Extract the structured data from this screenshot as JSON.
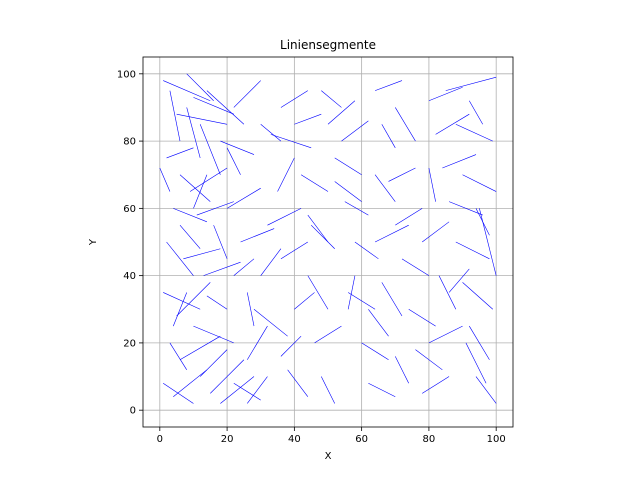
{
  "chart_data": {
    "type": "line-segments",
    "title": "Liniensegmente",
    "xlabel": "X",
    "ylabel": "Y",
    "xlim": [
      -5,
      105
    ],
    "ylim": [
      -5,
      105
    ],
    "xticks": [
      0,
      20,
      40,
      60,
      80,
      100
    ],
    "yticks": [
      0,
      20,
      40,
      60,
      80,
      100
    ],
    "xtick_labels": [
      "0",
      "20",
      "40",
      "60",
      "80",
      "100"
    ],
    "ytick_labels": [
      "0",
      "20",
      "40",
      "60",
      "80",
      "100"
    ],
    "grid": true,
    "segment_color": "#0000ff",
    "segments": [
      [
        [
          1,
          98
        ],
        [
          15,
          92
        ]
      ],
      [
        [
          3,
          95
        ],
        [
          6,
          80
        ]
      ],
      [
        [
          5,
          88
        ],
        [
          20,
          85
        ]
      ],
      [
        [
          8,
          90
        ],
        [
          12,
          75
        ]
      ],
      [
        [
          10,
          93
        ],
        [
          22,
          88
        ]
      ],
      [
        [
          12,
          85
        ],
        [
          18,
          70
        ]
      ],
      [
        [
          14,
          95
        ],
        [
          25,
          85
        ]
      ],
      [
        [
          2,
          75
        ],
        [
          10,
          78
        ]
      ],
      [
        [
          6,
          70
        ],
        [
          15,
          62
        ]
      ],
      [
        [
          9,
          65
        ],
        [
          20,
          72
        ]
      ],
      [
        [
          4,
          60
        ],
        [
          14,
          56
        ]
      ],
      [
        [
          11,
          58
        ],
        [
          22,
          62
        ]
      ],
      [
        [
          16,
          55
        ],
        [
          20,
          45
        ]
      ],
      [
        [
          2,
          50
        ],
        [
          10,
          40
        ]
      ],
      [
        [
          7,
          45
        ],
        [
          18,
          48
        ]
      ],
      [
        [
          13,
          40
        ],
        [
          24,
          44
        ]
      ],
      [
        [
          1,
          35
        ],
        [
          12,
          30
        ]
      ],
      [
        [
          5,
          28
        ],
        [
          15,
          38
        ]
      ],
      [
        [
          10,
          25
        ],
        [
          22,
          20
        ]
      ],
      [
        [
          3,
          20
        ],
        [
          8,
          12
        ]
      ],
      [
        [
          6,
          15
        ],
        [
          18,
          22
        ]
      ],
      [
        [
          12,
          10
        ],
        [
          20,
          18
        ]
      ],
      [
        [
          1,
          8
        ],
        [
          10,
          2
        ]
      ],
      [
        [
          4,
          4
        ],
        [
          14,
          12
        ]
      ],
      [
        [
          15,
          5
        ],
        [
          25,
          15
        ]
      ],
      [
        [
          18,
          2
        ],
        [
          28,
          10
        ]
      ],
      [
        [
          22,
          8
        ],
        [
          30,
          3
        ]
      ],
      [
        [
          26,
          15
        ],
        [
          32,
          25
        ]
      ],
      [
        [
          28,
          30
        ],
        [
          38,
          22
        ]
      ],
      [
        [
          30,
          40
        ],
        [
          36,
          48
        ]
      ],
      [
        [
          32,
          55
        ],
        [
          42,
          60
        ]
      ],
      [
        [
          35,
          65
        ],
        [
          40,
          75
        ]
      ],
      [
        [
          33,
          82
        ],
        [
          45,
          78
        ]
      ],
      [
        [
          36,
          90
        ],
        [
          44,
          95
        ]
      ],
      [
        [
          40,
          85
        ],
        [
          48,
          88
        ]
      ],
      [
        [
          42,
          70
        ],
        [
          50,
          65
        ]
      ],
      [
        [
          45,
          55
        ],
        [
          52,
          48
        ]
      ],
      [
        [
          44,
          40
        ],
        [
          50,
          30
        ]
      ],
      [
        [
          46,
          20
        ],
        [
          54,
          25
        ]
      ],
      [
        [
          48,
          10
        ],
        [
          52,
          2
        ]
      ],
      [
        [
          50,
          85
        ],
        [
          58,
          92
        ]
      ],
      [
        [
          52,
          75
        ],
        [
          60,
          70
        ]
      ],
      [
        [
          55,
          62
        ],
        [
          62,
          58
        ]
      ],
      [
        [
          58,
          50
        ],
        [
          65,
          45
        ]
      ],
      [
        [
          56,
          35
        ],
        [
          64,
          30
        ]
      ],
      [
        [
          60,
          20
        ],
        [
          68,
          15
        ]
      ],
      [
        [
          62,
          8
        ],
        [
          70,
          4
        ]
      ],
      [
        [
          64,
          95
        ],
        [
          72,
          98
        ]
      ],
      [
        [
          66,
          85
        ],
        [
          70,
          78
        ]
      ],
      [
        [
          68,
          68
        ],
        [
          76,
          72
        ]
      ],
      [
        [
          70,
          55
        ],
        [
          78,
          60
        ]
      ],
      [
        [
          72,
          45
        ],
        [
          80,
          40
        ]
      ],
      [
        [
          74,
          30
        ],
        [
          82,
          25
        ]
      ],
      [
        [
          76,
          18
        ],
        [
          84,
          12
        ]
      ],
      [
        [
          78,
          5
        ],
        [
          86,
          10
        ]
      ],
      [
        [
          80,
          92
        ],
        [
          90,
          96
        ]
      ],
      [
        [
          82,
          82
        ],
        [
          92,
          88
        ]
      ],
      [
        [
          84,
          72
        ],
        [
          94,
          76
        ]
      ],
      [
        [
          86,
          62
        ],
        [
          96,
          58
        ]
      ],
      [
        [
          88,
          50
        ],
        [
          98,
          45
        ]
      ],
      [
        [
          90,
          38
        ],
        [
          99,
          30
        ]
      ],
      [
        [
          92,
          25
        ],
        [
          98,
          15
        ]
      ],
      [
        [
          94,
          10
        ],
        [
          100,
          2
        ]
      ],
      [
        [
          85,
          95
        ],
        [
          100,
          99
        ]
      ],
      [
        [
          88,
          85
        ],
        [
          99,
          80
        ]
      ],
      [
        [
          90,
          70
        ],
        [
          100,
          65
        ]
      ],
      [
        [
          95,
          60
        ],
        [
          100,
          40
        ]
      ],
      [
        [
          91,
          20
        ],
        [
          97,
          8
        ]
      ],
      [
        [
          83,
          40
        ],
        [
          88,
          30
        ]
      ],
      [
        [
          80,
          20
        ],
        [
          90,
          25
        ]
      ],
      [
        [
          20,
          60
        ],
        [
          30,
          66
        ]
      ],
      [
        [
          24,
          50
        ],
        [
          34,
          54
        ]
      ],
      [
        [
          26,
          35
        ],
        [
          28,
          25
        ]
      ],
      [
        [
          18,
          80
        ],
        [
          28,
          76
        ]
      ],
      [
        [
          22,
          90
        ],
        [
          30,
          98
        ]
      ],
      [
        [
          38,
          12
        ],
        [
          44,
          4
        ]
      ],
      [
        [
          40,
          30
        ],
        [
          46,
          35
        ]
      ],
      [
        [
          36,
          45
        ],
        [
          44,
          50
        ]
      ],
      [
        [
          54,
          80
        ],
        [
          62,
          86
        ]
      ],
      [
        [
          58,
          40
        ],
        [
          56,
          30
        ]
      ],
      [
        [
          66,
          38
        ],
        [
          72,
          28
        ]
      ],
      [
        [
          64,
          50
        ],
        [
          74,
          55
        ]
      ],
      [
        [
          70,
          62
        ],
        [
          64,
          70
        ]
      ],
      [
        [
          76,
          80
        ],
        [
          70,
          90
        ]
      ],
      [
        [
          78,
          50
        ],
        [
          86,
          56
        ]
      ],
      [
        [
          8,
          35
        ],
        [
          4,
          25
        ]
      ],
      [
        [
          14,
          70
        ],
        [
          10,
          60
        ]
      ],
      [
        [
          16,
          92
        ],
        [
          8,
          100
        ]
      ],
      [
        [
          24,
          70
        ],
        [
          20,
          78
        ]
      ],
      [
        [
          32,
          10
        ],
        [
          26,
          2
        ]
      ],
      [
        [
          42,
          22
        ],
        [
          36,
          16
        ]
      ],
      [
        [
          50,
          50
        ],
        [
          44,
          58
        ]
      ],
      [
        [
          60,
          62
        ],
        [
          52,
          68
        ]
      ],
      [
        [
          68,
          22
        ],
        [
          62,
          30
        ]
      ],
      [
        [
          74,
          8
        ],
        [
          70,
          16
        ]
      ],
      [
        [
          82,
          62
        ],
        [
          80,
          72
        ]
      ],
      [
        [
          96,
          85
        ],
        [
          92,
          92
        ]
      ],
      [
        [
          98,
          52
        ],
        [
          94,
          60
        ]
      ],
      [
        [
          86,
          35
        ],
        [
          92,
          42
        ]
      ],
      [
        [
          48,
          95
        ],
        [
          54,
          90
        ]
      ],
      [
        [
          30,
          85
        ],
        [
          36,
          80
        ]
      ],
      [
        [
          12,
          48
        ],
        [
          6,
          55
        ]
      ],
      [
        [
          20,
          30
        ],
        [
          14,
          34
        ]
      ],
      [
        [
          3,
          65
        ],
        [
          0,
          72
        ]
      ],
      [
        [
          28,
          45
        ],
        [
          22,
          40
        ]
      ]
    ]
  }
}
